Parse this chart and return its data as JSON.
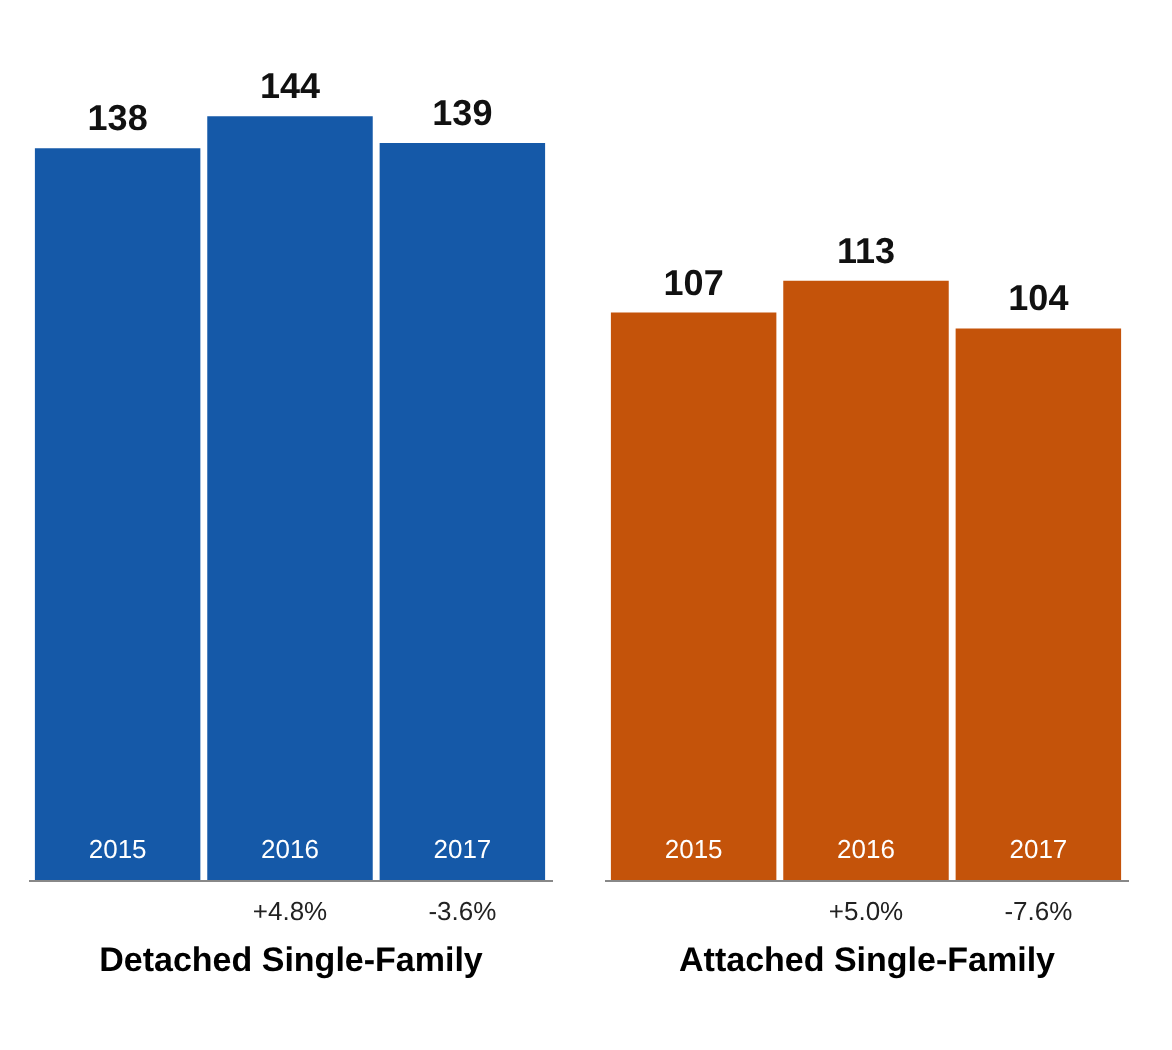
{
  "chart_data": [
    {
      "type": "bar",
      "xlabel": "Detached Single-Family",
      "categories": [
        "2015",
        "2016",
        "2017"
      ],
      "values": [
        138,
        144,
        139
      ],
      "color": "#1559a8",
      "data_labels": true,
      "annotations": [
        "+4.8%",
        "-3.6%"
      ]
    },
    {
      "type": "bar",
      "xlabel": "Attached Single-Family",
      "categories": [
        "2015",
        "2016",
        "2017"
      ],
      "values": [
        107,
        113,
        104
      ],
      "color": "#c4530a",
      "data_labels": true,
      "annotations": [
        "+5.0%",
        "-7.6%"
      ]
    }
  ]
}
